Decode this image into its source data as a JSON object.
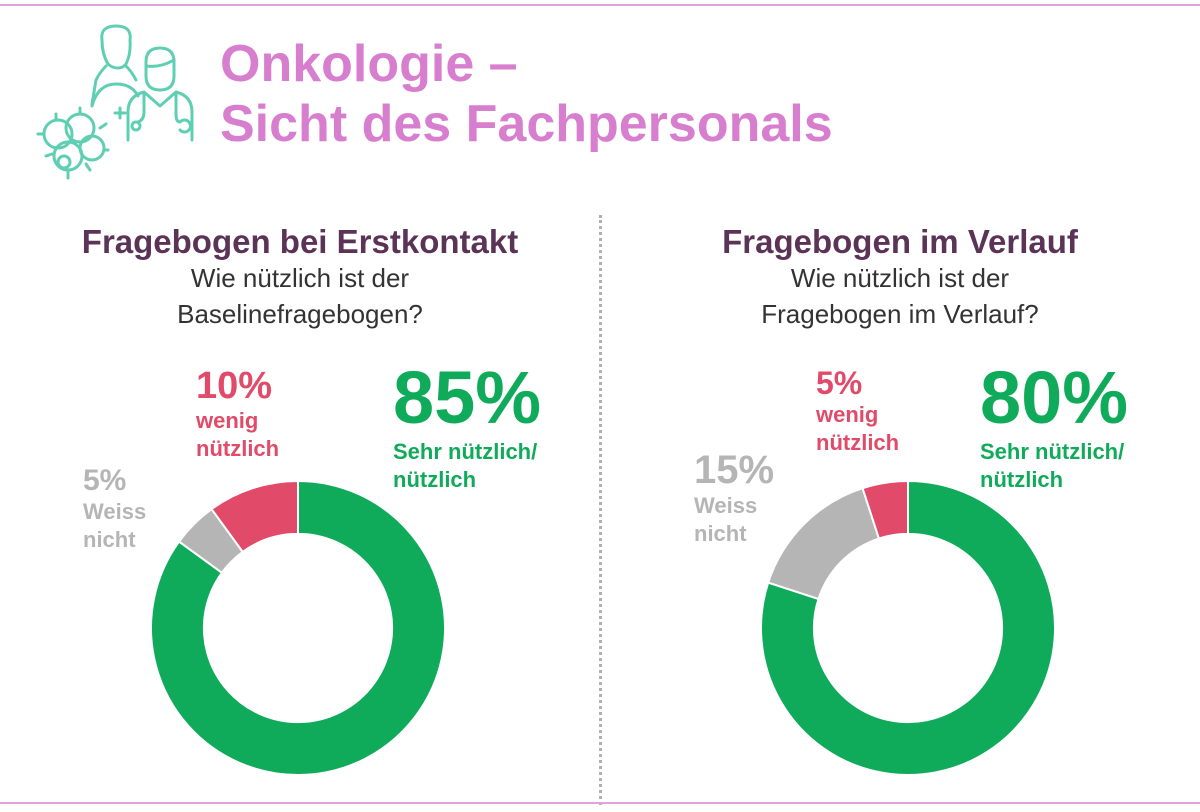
{
  "header": {
    "title_line1": "Onkologie –",
    "title_line2": "Sicht des Fachpersonals",
    "icon": "medical-staff-icon"
  },
  "colors": {
    "title": "#d77fce",
    "heading": "#5b3356",
    "green": "#10ab5a",
    "red": "#e14b69",
    "grey": "#b5b5b5",
    "icon": "#5fcfb3",
    "rule": "#e2a2db"
  },
  "chart_data": [
    {
      "type": "pie",
      "title": "Fragebogen bei Erstkontakt",
      "subtitle_line1": "Wie nützlich ist der",
      "subtitle_line2": "Baselinefragebogen?",
      "slices": [
        {
          "label_line1": "Sehr nützlich/",
          "label_line2": "nützlich",
          "value": 85,
          "display": "85%"
        },
        {
          "label_line1": "Weiss",
          "label_line2": "nicht",
          "value": 5,
          "display": "5%"
        },
        {
          "label_line1": "wenig",
          "label_line2": "nützlich",
          "value": 10,
          "display": "10%"
        }
      ]
    },
    {
      "type": "pie",
      "title": "Fragebogen im Verlauf",
      "subtitle_line1": "Wie nützlich ist der",
      "subtitle_line2": "Fragebogen im Verlauf?",
      "slices": [
        {
          "label_line1": "Sehr nützlich/",
          "label_line2": "nützlich",
          "value": 80,
          "display": "80%"
        },
        {
          "label_line1": "Weiss",
          "label_line2": "nicht",
          "value": 15,
          "display": "15%"
        },
        {
          "label_line1": "wenig",
          "label_line2": "nützlich",
          "value": 5,
          "display": "5%"
        }
      ]
    }
  ]
}
